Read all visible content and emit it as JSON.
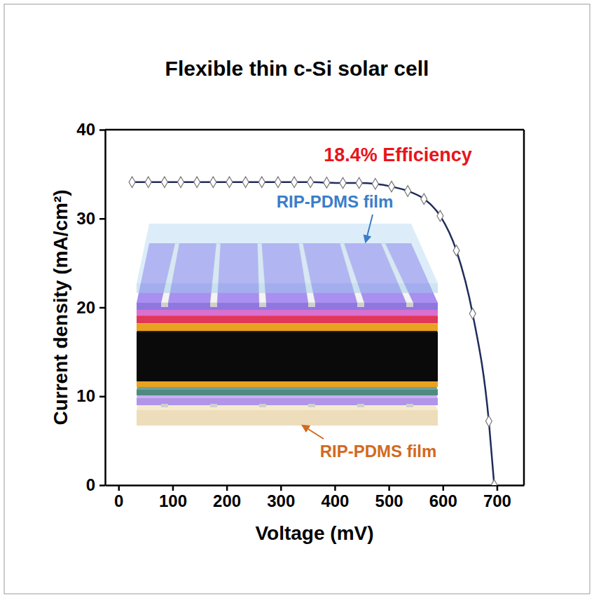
{
  "chart_data": {
    "type": "line",
    "title": "Flexible thin c-Si solar cell",
    "x_label": "Voltage (mV)",
    "y_label": "Current density (mA/cm²)",
    "x": [
      25,
      55,
      85,
      115,
      145,
      175,
      205,
      235,
      265,
      295,
      325,
      355,
      385,
      415,
      445,
      475,
      505,
      535,
      565,
      595,
      625,
      655,
      685,
      695
    ],
    "values": [
      34.1,
      34.1,
      34.1,
      34.1,
      34.1,
      34.1,
      34.1,
      34.1,
      34.1,
      34.1,
      34.1,
      34.1,
      34.05,
      34.0,
      34.0,
      33.9,
      33.6,
      33.1,
      32.2,
      30.3,
      26.4,
      19.3,
      7.2,
      0
    ],
    "color": "#1f2d5c",
    "marker": "diamond",
    "xlim": [
      -25,
      750
    ],
    "xticks": [
      0,
      100,
      200,
      300,
      400,
      500,
      600,
      700
    ],
    "ylim": [
      0,
      40
    ],
    "yticks": [
      0,
      10,
      20,
      30,
      40
    ],
    "grid": false,
    "annotations": [
      {
        "text": "18.4% Efficiency",
        "color": "#e8141b"
      },
      {
        "text": "RIP-PDMS film",
        "color": "#3a7dc9"
      },
      {
        "text": "RIP-PDMS film",
        "color": "#d2691e"
      }
    ]
  }
}
